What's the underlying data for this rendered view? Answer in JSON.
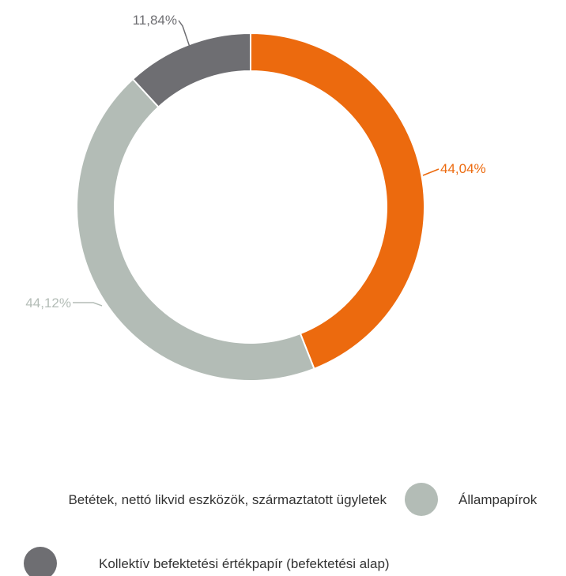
{
  "chart_data": {
    "type": "pie",
    "style": "donut",
    "slices": [
      {
        "label": "Betétek, nettó likvid eszközök, származtatott ügyletek",
        "value": 44.04,
        "display": "44,04%",
        "color": "#ec6a0e"
      },
      {
        "label": "Állampapírok",
        "value": 44.12,
        "display": "44,12%",
        "color": "#b3bcb6"
      },
      {
        "label": "Kollektív befektetési értékpapír (befektetési alap)",
        "value": 11.84,
        "display": "11,84%",
        "color": "#6e6e72"
      }
    ],
    "legend_placement": "bottom"
  }
}
